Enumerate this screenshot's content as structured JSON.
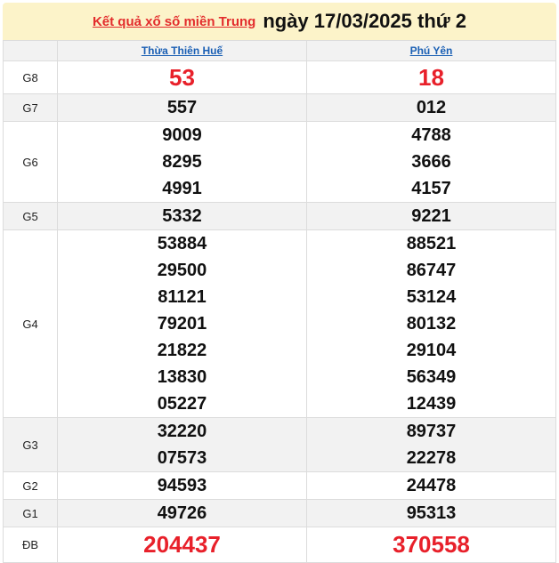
{
  "title": {
    "link": "Kết quả xổ số miền Trung",
    "date": "ngày 17/03/2025 thứ 2"
  },
  "provinces": [
    "Thừa Thiên Huế",
    "Phú Yên"
  ],
  "prizes": [
    {
      "label": "G8",
      "values": [
        [
          "53"
        ],
        [
          "18"
        ]
      ]
    },
    {
      "label": "G7",
      "values": [
        [
          "557"
        ],
        [
          "012"
        ]
      ]
    },
    {
      "label": "G6",
      "values": [
        [
          "9009",
          "8295",
          "4991"
        ],
        [
          "4788",
          "3666",
          "4157"
        ]
      ]
    },
    {
      "label": "G5",
      "values": [
        [
          "5332"
        ],
        [
          "9221"
        ]
      ]
    },
    {
      "label": "G4",
      "values": [
        [
          "53884",
          "29500",
          "81121",
          "79201",
          "21822",
          "13830",
          "05227"
        ],
        [
          "88521",
          "86747",
          "53124",
          "80132",
          "29104",
          "56349",
          "12439"
        ]
      ]
    },
    {
      "label": "G3",
      "values": [
        [
          "32220",
          "07573"
        ],
        [
          "89737",
          "22278"
        ]
      ]
    },
    {
      "label": "G2",
      "values": [
        [
          "94593"
        ],
        [
          "24478"
        ]
      ]
    },
    {
      "label": "G1",
      "values": [
        [
          "49726"
        ],
        [
          "95313"
        ]
      ]
    },
    {
      "label": "ĐB",
      "values": [
        [
          "204437"
        ],
        [
          "370558"
        ]
      ]
    }
  ],
  "colors": {
    "accent": "#e8202a",
    "header_bg": "#fcf3c9",
    "link": "#1a5fb4"
  }
}
